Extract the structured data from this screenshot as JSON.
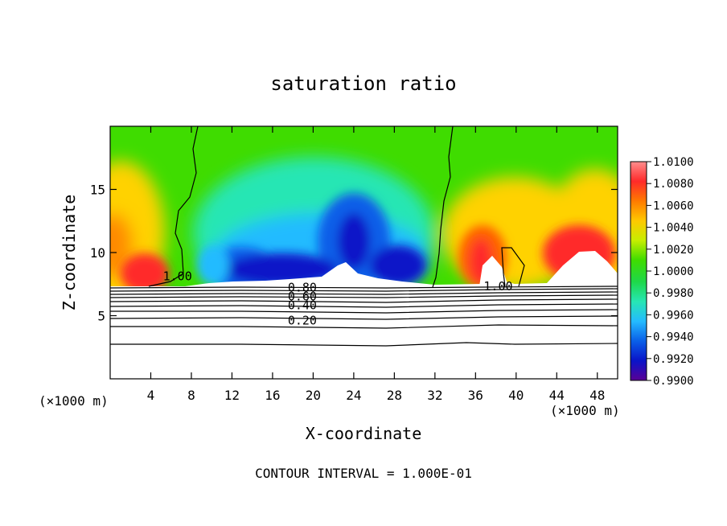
{
  "chart_data": {
    "type": "heatmap",
    "title": "saturation ratio",
    "xlabel": "X-coordinate",
    "ylabel": "Z-coordinate",
    "x_unit_left": "(×1000 m)",
    "x_unit_right": "(×1000 m)",
    "footer": "CONTOUR INTERVAL = 1.000E-01",
    "xlim": [
      0,
      50
    ],
    "ylim": [
      0,
      20
    ],
    "xticks": [
      4,
      8,
      12,
      16,
      20,
      24,
      28,
      32,
      36,
      40,
      44,
      48
    ],
    "yticks": [
      5,
      10,
      15
    ],
    "colorbar": {
      "range": [
        0.99,
        1.01
      ],
      "labels": [
        "1.0100",
        "1.0080",
        "1.0060",
        "1.0040",
        "1.0020",
        "1.0000",
        "0.9980",
        "0.9960",
        "0.9940",
        "0.9920",
        "0.9900"
      ],
      "colors": [
        "#ff8d8d",
        "#ff2a2a",
        "#ff7a00",
        "#ffc800",
        "#c7ee00",
        "#3fdc00",
        "#1ed84a",
        "#27e6b4",
        "#24bbff",
        "#0a5fe8",
        "#0a14c8",
        "#5a0096"
      ]
    },
    "contour_labels": [
      {
        "text": "1.00",
        "x": 5.2,
        "y": 7.8
      },
      {
        "text": "1.00",
        "x": 36.8,
        "y": 7.0
      },
      {
        "text": "0.80",
        "x": 17.5,
        "y": 6.9
      },
      {
        "text": "0.60",
        "x": 17.5,
        "y": 6.2
      },
      {
        "text": "0.40",
        "x": 17.5,
        "y": 5.5
      },
      {
        "text": "0.20",
        "x": 17.5,
        "y": 4.3
      }
    ]
  }
}
